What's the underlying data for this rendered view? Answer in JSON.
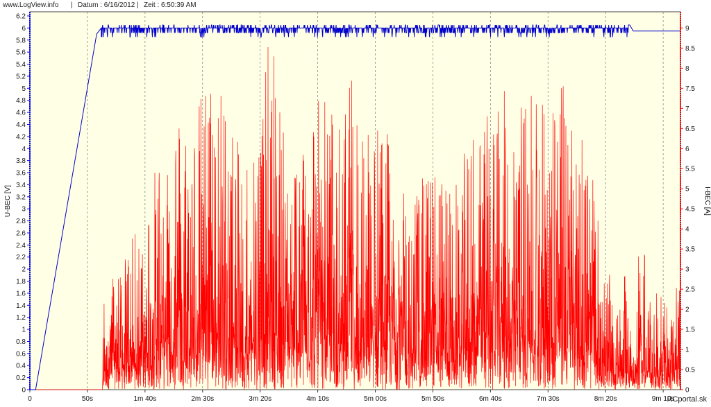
{
  "header": {
    "site": "www.LogView.info",
    "date": "Datum : 6/16/2012",
    "time": "Zeit : 6:50:39 AM",
    "separator": "|"
  },
  "watermark": "RCportal.sk",
  "colors": {
    "plot_background": "#FFFFE6",
    "voltage_series": "#0000CC",
    "current_series": "#FF0000",
    "grid": "#888888",
    "left_axis": "#0000FF",
    "right_axis": "#FF0000"
  },
  "chart_data": {
    "type": "line",
    "title": "",
    "xlabel": "",
    "x_ticks": [
      "0",
      "50s",
      "1m 40s",
      "2m 30s",
      "3m 20s",
      "4m 10s",
      "5m 00s",
      "5m 50s",
      "6m 40s",
      "7m 30s",
      "8m 20s",
      "9m 10s"
    ],
    "x_tick_seconds": [
      0,
      50,
      100,
      150,
      200,
      250,
      300,
      350,
      400,
      450,
      500,
      550
    ],
    "xlim_seconds": [
      0,
      565
    ],
    "grid": "vertical dashed at x ticks",
    "y_left": {
      "label": "U-BEC [V]",
      "ylim": [
        0,
        6.2
      ],
      "ticks": [
        "0",
        "0.2",
        "0.4",
        "0.6",
        "0.8",
        "1",
        "1.2",
        "1.4",
        "1.6",
        "1.8",
        "2",
        "2.2",
        "2.4",
        "2.6",
        "2.8",
        "3",
        "3.2",
        "3.4",
        "3.6",
        "3.8",
        "4",
        "4.2",
        "4.4",
        "4.6",
        "4.8",
        "5",
        "5.2",
        "5.4",
        "5.6",
        "5.8",
        "6",
        "6.2"
      ]
    },
    "y_right": {
      "label": "I-BEC [A]",
      "ylim": [
        0,
        9.3
      ],
      "ticks": [
        "0",
        "0.5",
        "1",
        "1.5",
        "2",
        "2.5",
        "3",
        "3.5",
        "4",
        "4.5",
        "5",
        "5.5",
        "6",
        "6.5",
        "7",
        "7.5",
        "8",
        "8.5",
        "9"
      ]
    },
    "series": [
      {
        "name": "U-BEC [V]",
        "axis": "left",
        "x": [
          0,
          5,
          58,
          62,
          150,
          250,
          350,
          450,
          520,
          523,
          530,
          565
        ],
        "y": [
          0,
          0,
          5.9,
          6.0,
          6.0,
          6.0,
          6.0,
          6.0,
          6.0,
          5.9,
          5.9,
          5.9
        ],
        "noise": "fluctuates between 5.9 and 6.05 from 62s to 520s"
      },
      {
        "name": "I-BEC [A]",
        "axis": "right",
        "envelope_x": [
          0,
          63,
          64,
          80,
          100,
          120,
          130,
          140,
          150,
          160,
          170,
          180,
          190,
          200,
          210,
          220,
          230,
          240,
          250,
          260,
          270,
          280,
          290,
          300,
          310,
          320,
          330,
          340,
          350,
          360,
          370,
          380,
          390,
          400,
          410,
          420,
          430,
          440,
          450,
          460,
          470,
          480,
          490,
          500,
          510,
          520,
          525,
          530,
          540,
          552,
          555,
          560,
          565
        ],
        "envelope_peak_y": [
          0,
          0,
          2.7,
          3.2,
          4.5,
          6.9,
          7.1,
          6.5,
          7.6,
          8.1,
          7.3,
          6.2,
          6.0,
          7.2,
          9.2,
          6.5,
          6.0,
          6.8,
          7.7,
          7.3,
          6.5,
          8.0,
          7.1,
          6.8,
          6.5,
          5.0,
          4.8,
          5.3,
          5.5,
          5.4,
          5.2,
          6.2,
          7.0,
          7.0,
          7.5,
          7.3,
          7.2,
          8.0,
          7.6,
          7.5,
          8.3,
          7.1,
          5.0,
          3.0,
          2.6,
          3.0,
          0.5,
          4.6,
          2.0,
          3.1,
          1.0,
          2.5,
          3.0
        ],
        "typical_y": 1.5
      }
    ]
  }
}
